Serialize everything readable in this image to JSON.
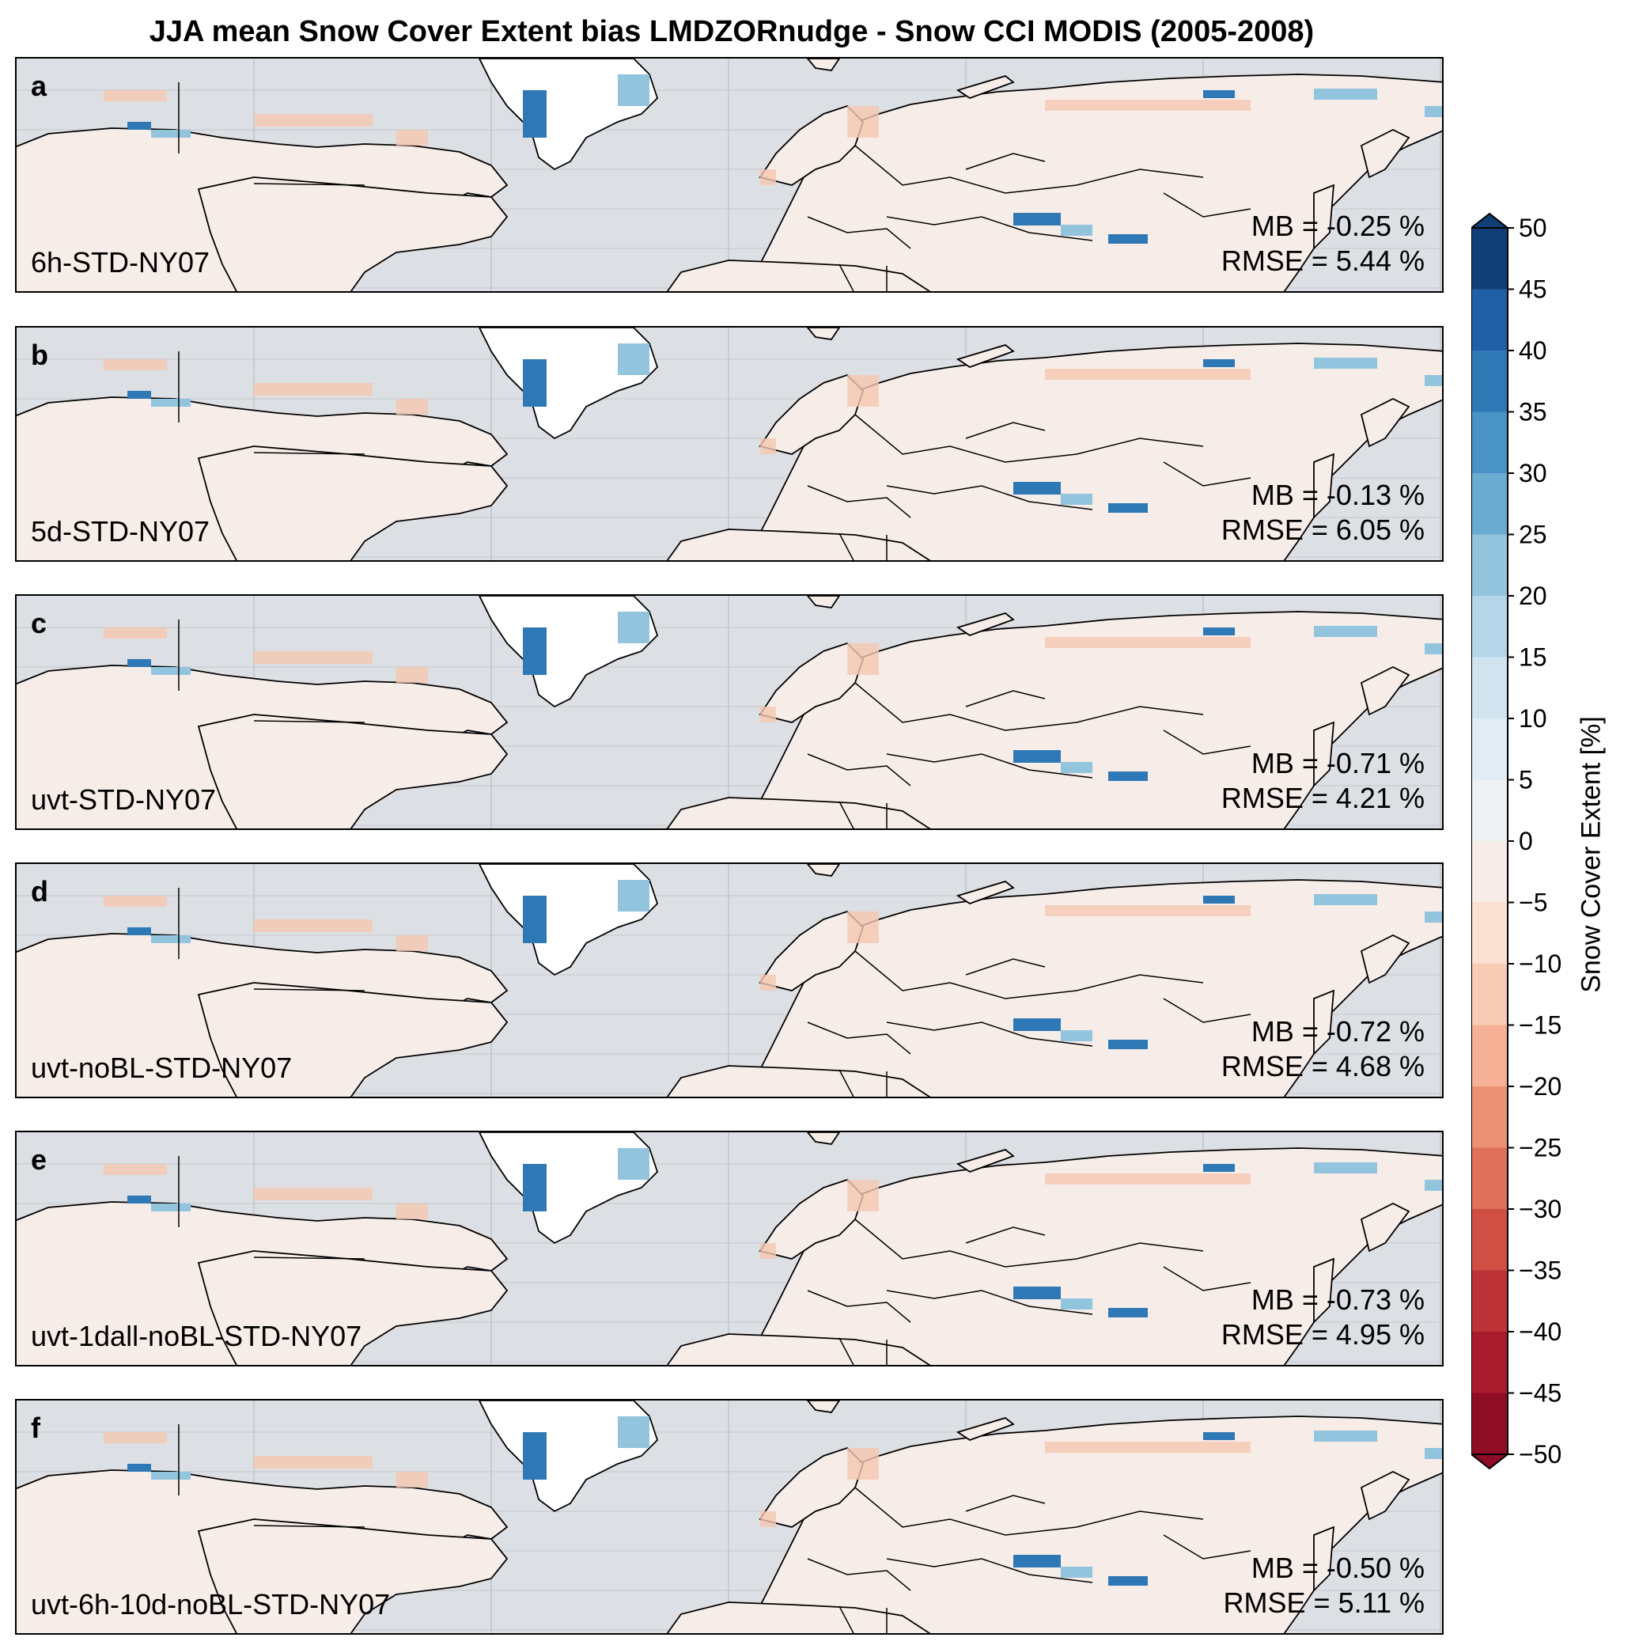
{
  "title": "JJA mean Snow Cover Extent bias LMDZORnudge - Snow CCI MODIS (2005-2008)",
  "panels": [
    {
      "letter": "a",
      "name": "6h-STD-NY07",
      "mb": "MB = -0.25 %",
      "rmse": "RMSE = 5.44 %"
    },
    {
      "letter": "b",
      "name": "5d-STD-NY07",
      "mb": "MB = -0.13 %",
      "rmse": "RMSE = 6.05 %"
    },
    {
      "letter": "c",
      "name": "uvt-STD-NY07",
      "mb": "MB = -0.71 %",
      "rmse": "RMSE = 4.21 %"
    },
    {
      "letter": "d",
      "name": "uvt-noBL-STD-NY07",
      "mb": "MB = -0.72 %",
      "rmse": "RMSE = 4.68 %"
    },
    {
      "letter": "e",
      "name": "uvt-1dall-noBL-STD-NY07",
      "mb": "MB = -0.73 %",
      "rmse": "RMSE = 4.95 %"
    },
    {
      "letter": "f",
      "name": "uvt-6h-10d-noBL-STD-NY07",
      "mb": "MB = -0.50 %",
      "rmse": "RMSE = 5.11 %"
    }
  ],
  "colorbar": {
    "label": "Snow Cover Extent [%]",
    "ticks": [
      "50",
      "45",
      "40",
      "35",
      "30",
      "25",
      "20",
      "15",
      "10",
      "5",
      "0",
      "−5",
      "−10",
      "−15",
      "−20",
      "−25",
      "−30",
      "−35",
      "−40",
      "−45",
      "−50"
    ],
    "colors_top_to_bottom": [
      "#0f3f76",
      "#1f5fa6",
      "#2e78b6",
      "#4a93c6",
      "#6aabd2",
      "#92c4de",
      "#b5d6e8",
      "#d0e3ef",
      "#e2ecf3",
      "#eef2f4",
      "#f7ece7",
      "#fbe1d3",
      "#f9ccb5",
      "#f5b095",
      "#ed9175",
      "#e07059",
      "#cf4f44",
      "#bd3338",
      "#a91a2d",
      "#8e0c25"
    ],
    "extend": "both"
  },
  "colors": {
    "ocean": "#dcdfe3",
    "land": "#f7ede8",
    "ice_sheet": "#ffffff",
    "positive_bias": "#1f5fa6",
    "negative_bias": "#ed9175"
  }
}
